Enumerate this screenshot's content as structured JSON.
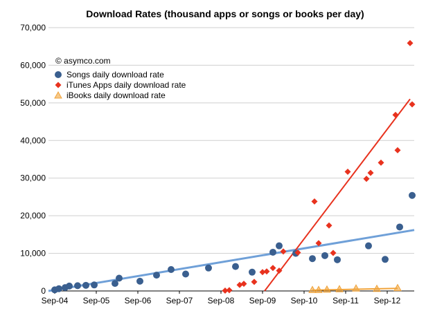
{
  "chart_data": {
    "type": "scatter",
    "title": "Download Rates (thousand apps or songs or books per day)",
    "credit": "© asymco.com",
    "xlabel": "",
    "ylabel": "",
    "x_ticks": [
      "Sep-04",
      "Sep-05",
      "Sep-06",
      "Sep-07",
      "Sep-08",
      "Sep-09",
      "Sep-10",
      "Sep-11",
      "Sep-12"
    ],
    "xlim": [
      2004.6,
      2013.4
    ],
    "ylim": [
      0,
      70000
    ],
    "y_ticks": [
      "0",
      "10,000",
      "20,000",
      "30,000",
      "40,000",
      "50,000",
      "60,000",
      "70,000"
    ],
    "y_tick_values": [
      0,
      10000,
      20000,
      30000,
      40000,
      50000,
      60000,
      70000
    ],
    "grid": true,
    "legend_position": "top-left",
    "series": [
      {
        "name": "Songs daily download rate",
        "marker": "circle",
        "color": "#3a5f8f",
        "trendline_color": "#6fa0d8",
        "points": [
          [
            2004.75,
            300
          ],
          [
            2004.85,
            600
          ],
          [
            2005.0,
            900
          ],
          [
            2005.1,
            1300
          ],
          [
            2005.3,
            1400
          ],
          [
            2005.5,
            1500
          ],
          [
            2005.7,
            1600
          ],
          [
            2006.2,
            2000
          ],
          [
            2006.3,
            3400
          ],
          [
            2006.8,
            2600
          ],
          [
            2007.2,
            4200
          ],
          [
            2007.55,
            5700
          ],
          [
            2007.9,
            4500
          ],
          [
            2008.45,
            6100
          ],
          [
            2009.1,
            6500
          ],
          [
            2009.5,
            5000
          ],
          [
            2010.0,
            10300
          ],
          [
            2010.15,
            12000
          ],
          [
            2010.55,
            10000
          ],
          [
            2010.95,
            8600
          ],
          [
            2011.25,
            9400
          ],
          [
            2011.55,
            8300
          ],
          [
            2012.3,
            12000
          ],
          [
            2012.7,
            8400
          ],
          [
            2013.05,
            17000
          ],
          [
            2013.4,
            25400
          ]
        ],
        "trend": [
          [
            2004.6,
            0
          ],
          [
            2013.4,
            16200
          ]
        ]
      },
      {
        "name": "iTunes Apps daily download rate",
        "marker": "diamond",
        "color": "#e8321e",
        "trendline_color": "#e8321e",
        "points": [
          [
            2008.85,
            100
          ],
          [
            2008.95,
            200
          ],
          [
            2009.2,
            1600
          ],
          [
            2009.3,
            1900
          ],
          [
            2009.55,
            2400
          ],
          [
            2009.75,
            5000
          ],
          [
            2009.85,
            5200
          ],
          [
            2010.0,
            6100
          ],
          [
            2010.15,
            5400
          ],
          [
            2010.25,
            10500
          ],
          [
            2010.6,
            10200
          ],
          [
            2011.0,
            23800
          ],
          [
            2011.1,
            12700
          ],
          [
            2011.35,
            17400
          ],
          [
            2011.45,
            10100
          ],
          [
            2011.8,
            31700
          ],
          [
            2012.25,
            29800
          ],
          [
            2012.35,
            31400
          ],
          [
            2012.6,
            34100
          ],
          [
            2012.95,
            46800
          ],
          [
            2013.5,
            49600
          ],
          [
            2013.0,
            37400
          ],
          [
            2013.3,
            65900
          ]
        ],
        "trend": [
          [
            2009.8,
            0
          ],
          [
            2013.3,
            51000
          ]
        ]
      },
      {
        "name": "iBooks daily download rate",
        "marker": "triangle",
        "color": "#f0a33a",
        "trendline_color": "#f0a33a",
        "points": [
          [
            2010.95,
            300
          ],
          [
            2011.1,
            300
          ],
          [
            2011.3,
            400
          ],
          [
            2011.6,
            500
          ],
          [
            2012.0,
            700
          ],
          [
            2012.5,
            600
          ],
          [
            2013.0,
            800
          ]
        ],
        "trend": [
          [
            2010.95,
            200
          ],
          [
            2013.0,
            700
          ]
        ]
      }
    ]
  }
}
